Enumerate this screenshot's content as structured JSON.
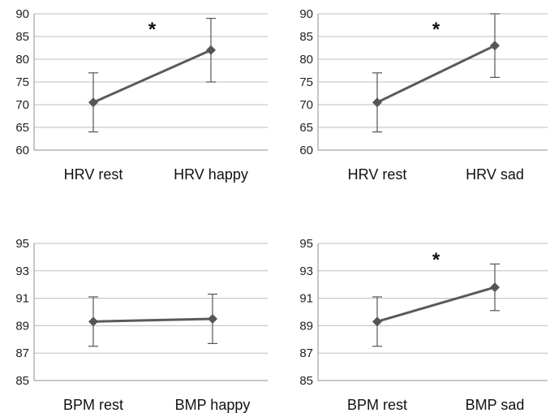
{
  "chart_data": [
    {
      "type": "line",
      "categories": [
        "HRV rest",
        "HRV happy"
      ],
      "series": [
        {
          "values": [
            70.5,
            82.0
          ],
          "error": [
            [
              64,
              77
            ],
            [
              75,
              89
            ]
          ]
        }
      ],
      "ylim": [
        60,
        90
      ],
      "yticks": [
        60,
        65,
        70,
        75,
        80,
        85,
        90
      ],
      "significance": "*",
      "grid": true
    },
    {
      "type": "line",
      "categories": [
        "HRV rest",
        "HRV sad"
      ],
      "series": [
        {
          "values": [
            70.5,
            83.0
          ],
          "error": [
            [
              64,
              77
            ],
            [
              76,
              90
            ]
          ]
        }
      ],
      "ylim": [
        60,
        90
      ],
      "yticks": [
        60,
        65,
        70,
        75,
        80,
        85,
        90
      ],
      "significance": "*",
      "grid": true
    },
    {
      "type": "line",
      "categories": [
        "BPM rest",
        "BMP happy"
      ],
      "series": [
        {
          "values": [
            89.3,
            89.5
          ],
          "error": [
            [
              87.5,
              91.1
            ],
            [
              87.7,
              91.3
            ]
          ]
        }
      ],
      "ylim": [
        85,
        95
      ],
      "yticks": [
        85,
        87,
        89,
        91,
        93,
        95
      ],
      "significance": "",
      "grid": true
    },
    {
      "type": "line",
      "categories": [
        "BPM rest",
        "BMP sad"
      ],
      "series": [
        {
          "values": [
            89.3,
            91.8
          ],
          "error": [
            [
              87.5,
              91.1
            ],
            [
              90.1,
              93.5
            ]
          ]
        }
      ],
      "ylim": [
        85,
        95
      ],
      "yticks": [
        85,
        87,
        89,
        91,
        93,
        95
      ],
      "significance": "*",
      "grid": true
    }
  ]
}
